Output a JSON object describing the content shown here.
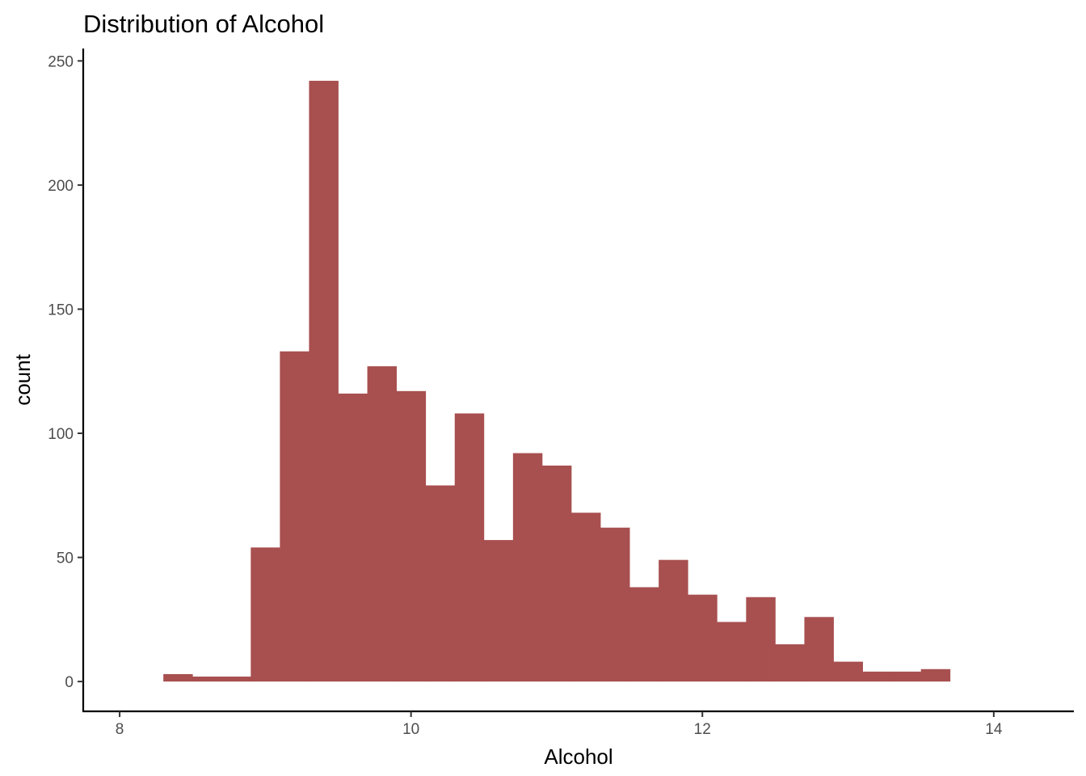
{
  "chart_data": {
    "type": "bar",
    "subtype": "histogram",
    "title": "Distribution of Alcohol",
    "xlabel": "Alcohol",
    "ylabel": "count",
    "xlim": [
      7.75,
      14.55
    ],
    "ylim": [
      -12,
      255
    ],
    "x_ticks": [
      8,
      10,
      12,
      14
    ],
    "y_ticks": [
      0,
      50,
      100,
      150,
      200,
      250
    ],
    "bin_width": 0.2,
    "bins": [
      {
        "x0": 8.3,
        "x1": 8.5,
        "count": 3
      },
      {
        "x0": 8.5,
        "x1": 8.7,
        "count": 2
      },
      {
        "x0": 8.7,
        "x1": 8.9,
        "count": 2
      },
      {
        "x0": 8.9,
        "x1": 9.1,
        "count": 54
      },
      {
        "x0": 9.1,
        "x1": 9.3,
        "count": 133
      },
      {
        "x0": 9.3,
        "x1": 9.5,
        "count": 242
      },
      {
        "x0": 9.5,
        "x1": 9.7,
        "count": 116
      },
      {
        "x0": 9.7,
        "x1": 9.9,
        "count": 127
      },
      {
        "x0": 9.9,
        "x1": 10.1,
        "count": 117
      },
      {
        "x0": 10.1,
        "x1": 10.3,
        "count": 79
      },
      {
        "x0": 10.3,
        "x1": 10.5,
        "count": 108
      },
      {
        "x0": 10.5,
        "x1": 10.7,
        "count": 57
      },
      {
        "x0": 10.7,
        "x1": 10.9,
        "count": 92
      },
      {
        "x0": 10.9,
        "x1": 11.1,
        "count": 87
      },
      {
        "x0": 11.1,
        "x1": 11.3,
        "count": 68
      },
      {
        "x0": 11.3,
        "x1": 11.5,
        "count": 62
      },
      {
        "x0": 11.5,
        "x1": 11.7,
        "count": 38
      },
      {
        "x0": 11.7,
        "x1": 11.9,
        "count": 49
      },
      {
        "x0": 11.9,
        "x1": 12.1,
        "count": 35
      },
      {
        "x0": 12.1,
        "x1": 12.3,
        "count": 24
      },
      {
        "x0": 12.3,
        "x1": 12.5,
        "count": 34
      },
      {
        "x0": 12.5,
        "x1": 12.7,
        "count": 15
      },
      {
        "x0": 12.7,
        "x1": 12.9,
        "count": 26
      },
      {
        "x0": 12.9,
        "x1": 13.1,
        "count": 8
      },
      {
        "x0": 13.1,
        "x1": 13.3,
        "count": 4
      },
      {
        "x0": 13.3,
        "x1": 13.5,
        "count": 4
      },
      {
        "x0": 13.5,
        "x1": 13.7,
        "count": 5
      }
    ],
    "bar_color": "#a84f4f",
    "grid": false,
    "legend": "none"
  }
}
